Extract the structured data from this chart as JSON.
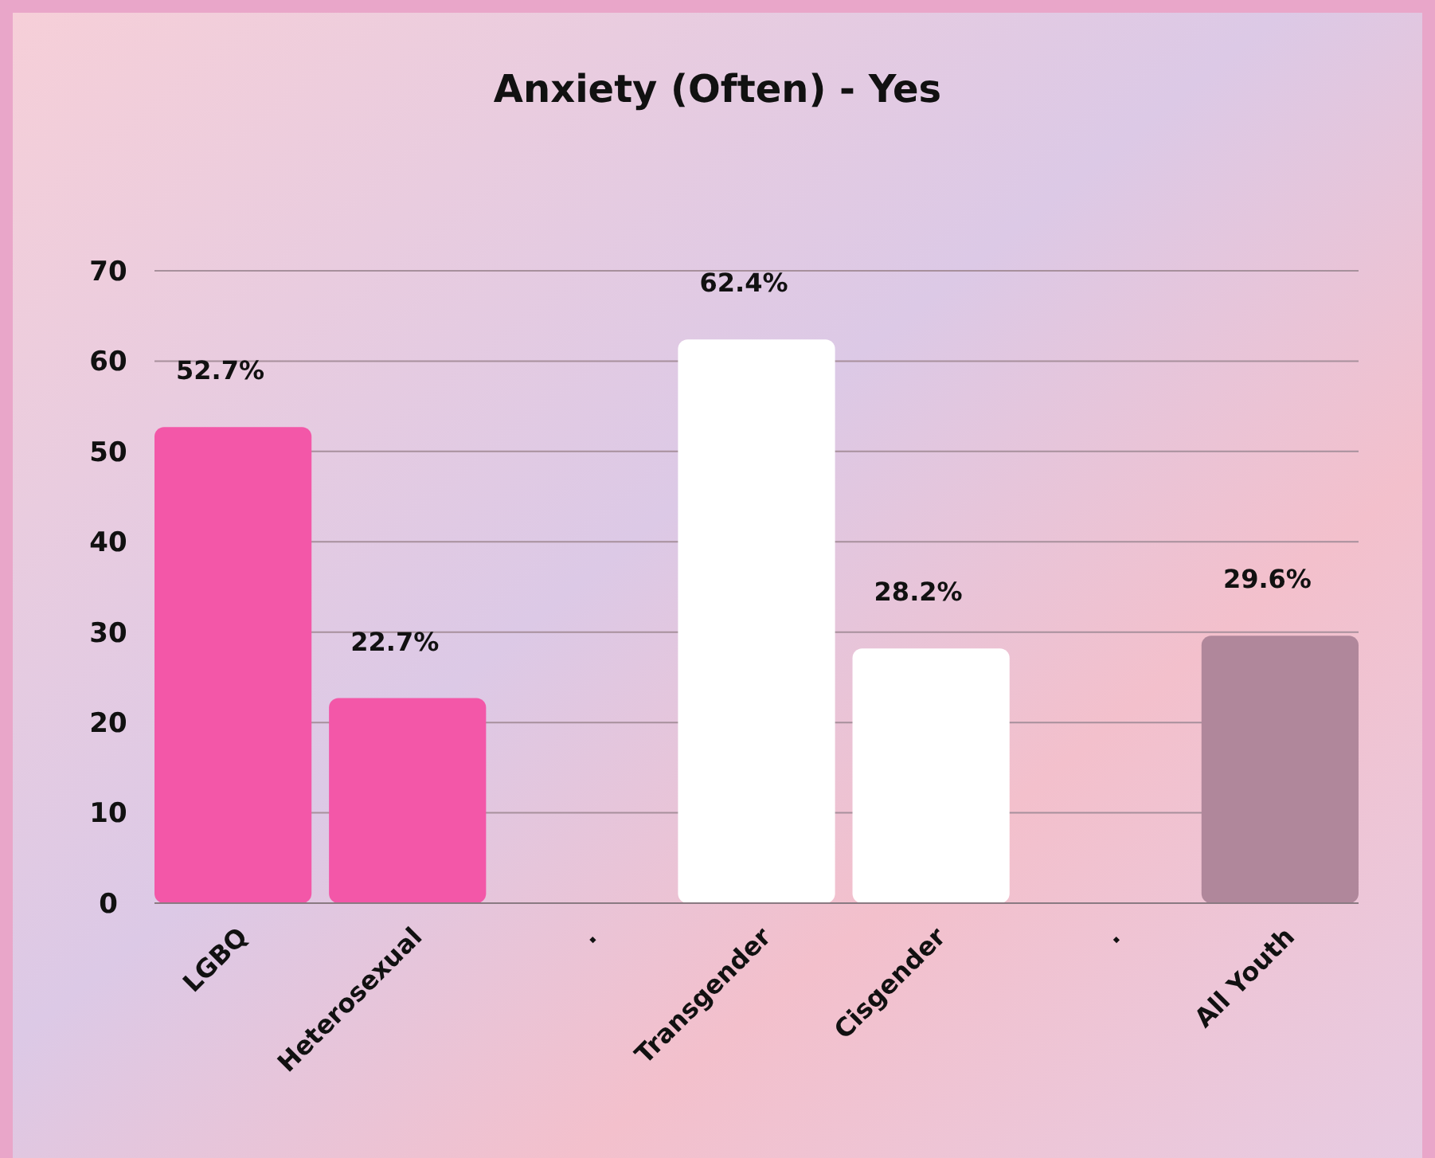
{
  "chart_data": {
    "type": "bar",
    "title": "Anxiety (Often) - Yes",
    "categories": [
      "LGBQ",
      "Heterosexual",
      ".",
      "Transgender",
      "Cisgender",
      ".",
      "All Youth"
    ],
    "values": [
      52.7,
      22.7,
      null,
      62.4,
      28.2,
      null,
      29.6
    ],
    "colors": [
      "#f357a8",
      "#f357a8",
      null,
      "#ffffff",
      "#ffffff",
      null,
      "#b0879b"
    ],
    "value_labels": [
      "52.7%",
      "22.7%",
      null,
      "62.4%",
      "28.2%",
      null,
      "29.6%"
    ],
    "ylim": [
      0,
      70
    ],
    "yticks": [
      0,
      10,
      20,
      30,
      40,
      50,
      60,
      70
    ],
    "grid": "y"
  }
}
